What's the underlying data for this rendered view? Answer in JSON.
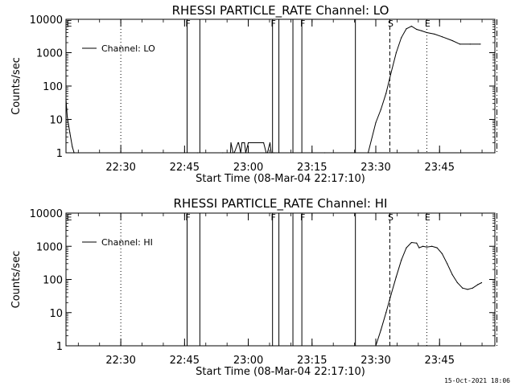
{
  "chart_data": [
    {
      "type": "line",
      "title": "RHESSI PARTICLE_RATE Channel: LO",
      "xlabel": "Start Time (08-Mar-04 22:17:10)",
      "ylabel": "Counts/sec",
      "ylog": true,
      "ylim": [
        1,
        10000
      ],
      "xlim_min": [
        22.285,
        23.967
      ],
      "yticks": [
        {
          "v": 1,
          "label": "1"
        },
        {
          "v": 10,
          "label": "10"
        },
        {
          "v": 100,
          "label": "100"
        },
        {
          "v": 1000,
          "label": "1000"
        },
        {
          "v": 10000,
          "label": "10000"
        }
      ],
      "xticks": [
        {
          "h": 22.5,
          "label": "22:30"
        },
        {
          "h": 22.75,
          "label": "22:45"
        },
        {
          "h": 23.0,
          "label": "23:00"
        },
        {
          "h": 23.25,
          "label": "23:15"
        },
        {
          "h": 23.5,
          "label": "23:30"
        },
        {
          "h": 23.75,
          "label": "23:45"
        }
      ],
      "legend": {
        "label": "Channel: LO",
        "position": "top-left"
      },
      "series": [
        {
          "name": "Channel: LO",
          "x": [
            22.285,
            22.29,
            22.3,
            22.31,
            22.317,
            22.5,
            22.8,
            22.9,
            22.93,
            22.932,
            22.94,
            22.945,
            22.96,
            22.962,
            22.97,
            22.975,
            22.985,
            22.99,
            23.0,
            23.06,
            23.07,
            23.075,
            23.085,
            23.09,
            23.1,
            23.3,
            23.47,
            23.5,
            23.52,
            23.54,
            23.56,
            23.58,
            23.6,
            23.62,
            23.64,
            23.66,
            23.68,
            23.7,
            23.73,
            23.76,
            23.8,
            23.83,
            23.87,
            23.91
          ],
          "y": [
            40,
            12,
            4,
            1.5,
            1,
            1,
            1,
            1,
            1,
            2,
            1,
            1,
            2,
            2,
            1,
            2,
            2,
            1,
            2,
            2,
            1,
            1,
            2,
            1,
            1,
            1,
            1,
            8,
            20,
            60,
            250,
            1000,
            2800,
            5200,
            6200,
            5000,
            4500,
            4000,
            3600,
            3000,
            2300,
            1800,
            1800,
            1800
          ]
        }
      ],
      "vlines": [
        {
          "h": 22.5,
          "style": "dotted"
        },
        {
          "h": 22.76,
          "style": "solid",
          "flag": "F"
        },
        {
          "h": 22.81,
          "style": "solid"
        },
        {
          "h": 23.095,
          "style": "solid",
          "flag": "F"
        },
        {
          "h": 23.12,
          "style": "solid"
        },
        {
          "h": 23.175,
          "style": "solid"
        },
        {
          "h": 23.21,
          "style": "solid",
          "flag": "F"
        },
        {
          "h": 23.42,
          "style": "solid"
        },
        {
          "h": 23.555,
          "style": "dashed",
          "flag": "S"
        },
        {
          "h": 23.7,
          "style": "dotted",
          "flag": "E"
        },
        {
          "h": 23.975,
          "style": "dashdot"
        }
      ],
      "corner_flag": "E"
    },
    {
      "type": "line",
      "title": "RHESSI PARTICLE_RATE Channel: HI",
      "xlabel": "Start Time (08-Mar-04 22:17:10)",
      "ylabel": "Counts/sec",
      "ylog": true,
      "ylim": [
        1,
        10000
      ],
      "xlim_min": [
        22.285,
        23.967
      ],
      "yticks": [
        {
          "v": 1,
          "label": "1"
        },
        {
          "v": 10,
          "label": "10"
        },
        {
          "v": 100,
          "label": "100"
        },
        {
          "v": 1000,
          "label": "1000"
        },
        {
          "v": 10000,
          "label": "10000"
        }
      ],
      "xticks": [
        {
          "h": 22.5,
          "label": "22:30"
        },
        {
          "h": 22.75,
          "label": "22:45"
        },
        {
          "h": 23.0,
          "label": "23:00"
        },
        {
          "h": 23.25,
          "label": "23:15"
        },
        {
          "h": 23.5,
          "label": "23:30"
        },
        {
          "h": 23.75,
          "label": "23:45"
        }
      ],
      "legend": {
        "label": "Channel: HI",
        "position": "top-left"
      },
      "series": [
        {
          "name": "Channel: HI",
          "x": [
            23.5,
            23.52,
            23.54,
            23.56,
            23.58,
            23.6,
            23.62,
            23.64,
            23.66,
            23.67,
            23.685,
            23.7,
            23.72,
            23.74,
            23.76,
            23.78,
            23.8,
            23.82,
            23.84,
            23.86,
            23.88,
            23.9,
            23.915
          ],
          "y": [
            1,
            3,
            10,
            35,
            120,
            380,
            900,
            1300,
            1250,
            900,
            1000,
            950,
            1000,
            900,
            600,
            300,
            140,
            80,
            55,
            50,
            55,
            70,
            80
          ]
        }
      ],
      "vlines": [
        {
          "h": 22.5,
          "style": "dotted"
        },
        {
          "h": 22.76,
          "style": "solid",
          "flag": "F"
        },
        {
          "h": 22.81,
          "style": "solid"
        },
        {
          "h": 23.095,
          "style": "solid",
          "flag": "F"
        },
        {
          "h": 23.12,
          "style": "solid"
        },
        {
          "h": 23.175,
          "style": "solid"
        },
        {
          "h": 23.21,
          "style": "solid",
          "flag": "F"
        },
        {
          "h": 23.42,
          "style": "solid"
        },
        {
          "h": 23.555,
          "style": "dashed",
          "flag": "S"
        },
        {
          "h": 23.7,
          "style": "dotted",
          "flag": "E"
        },
        {
          "h": 23.975,
          "style": "dashdot"
        }
      ],
      "corner_flag": "E"
    }
  ],
  "footer": "15-Oct-2021 18:06"
}
